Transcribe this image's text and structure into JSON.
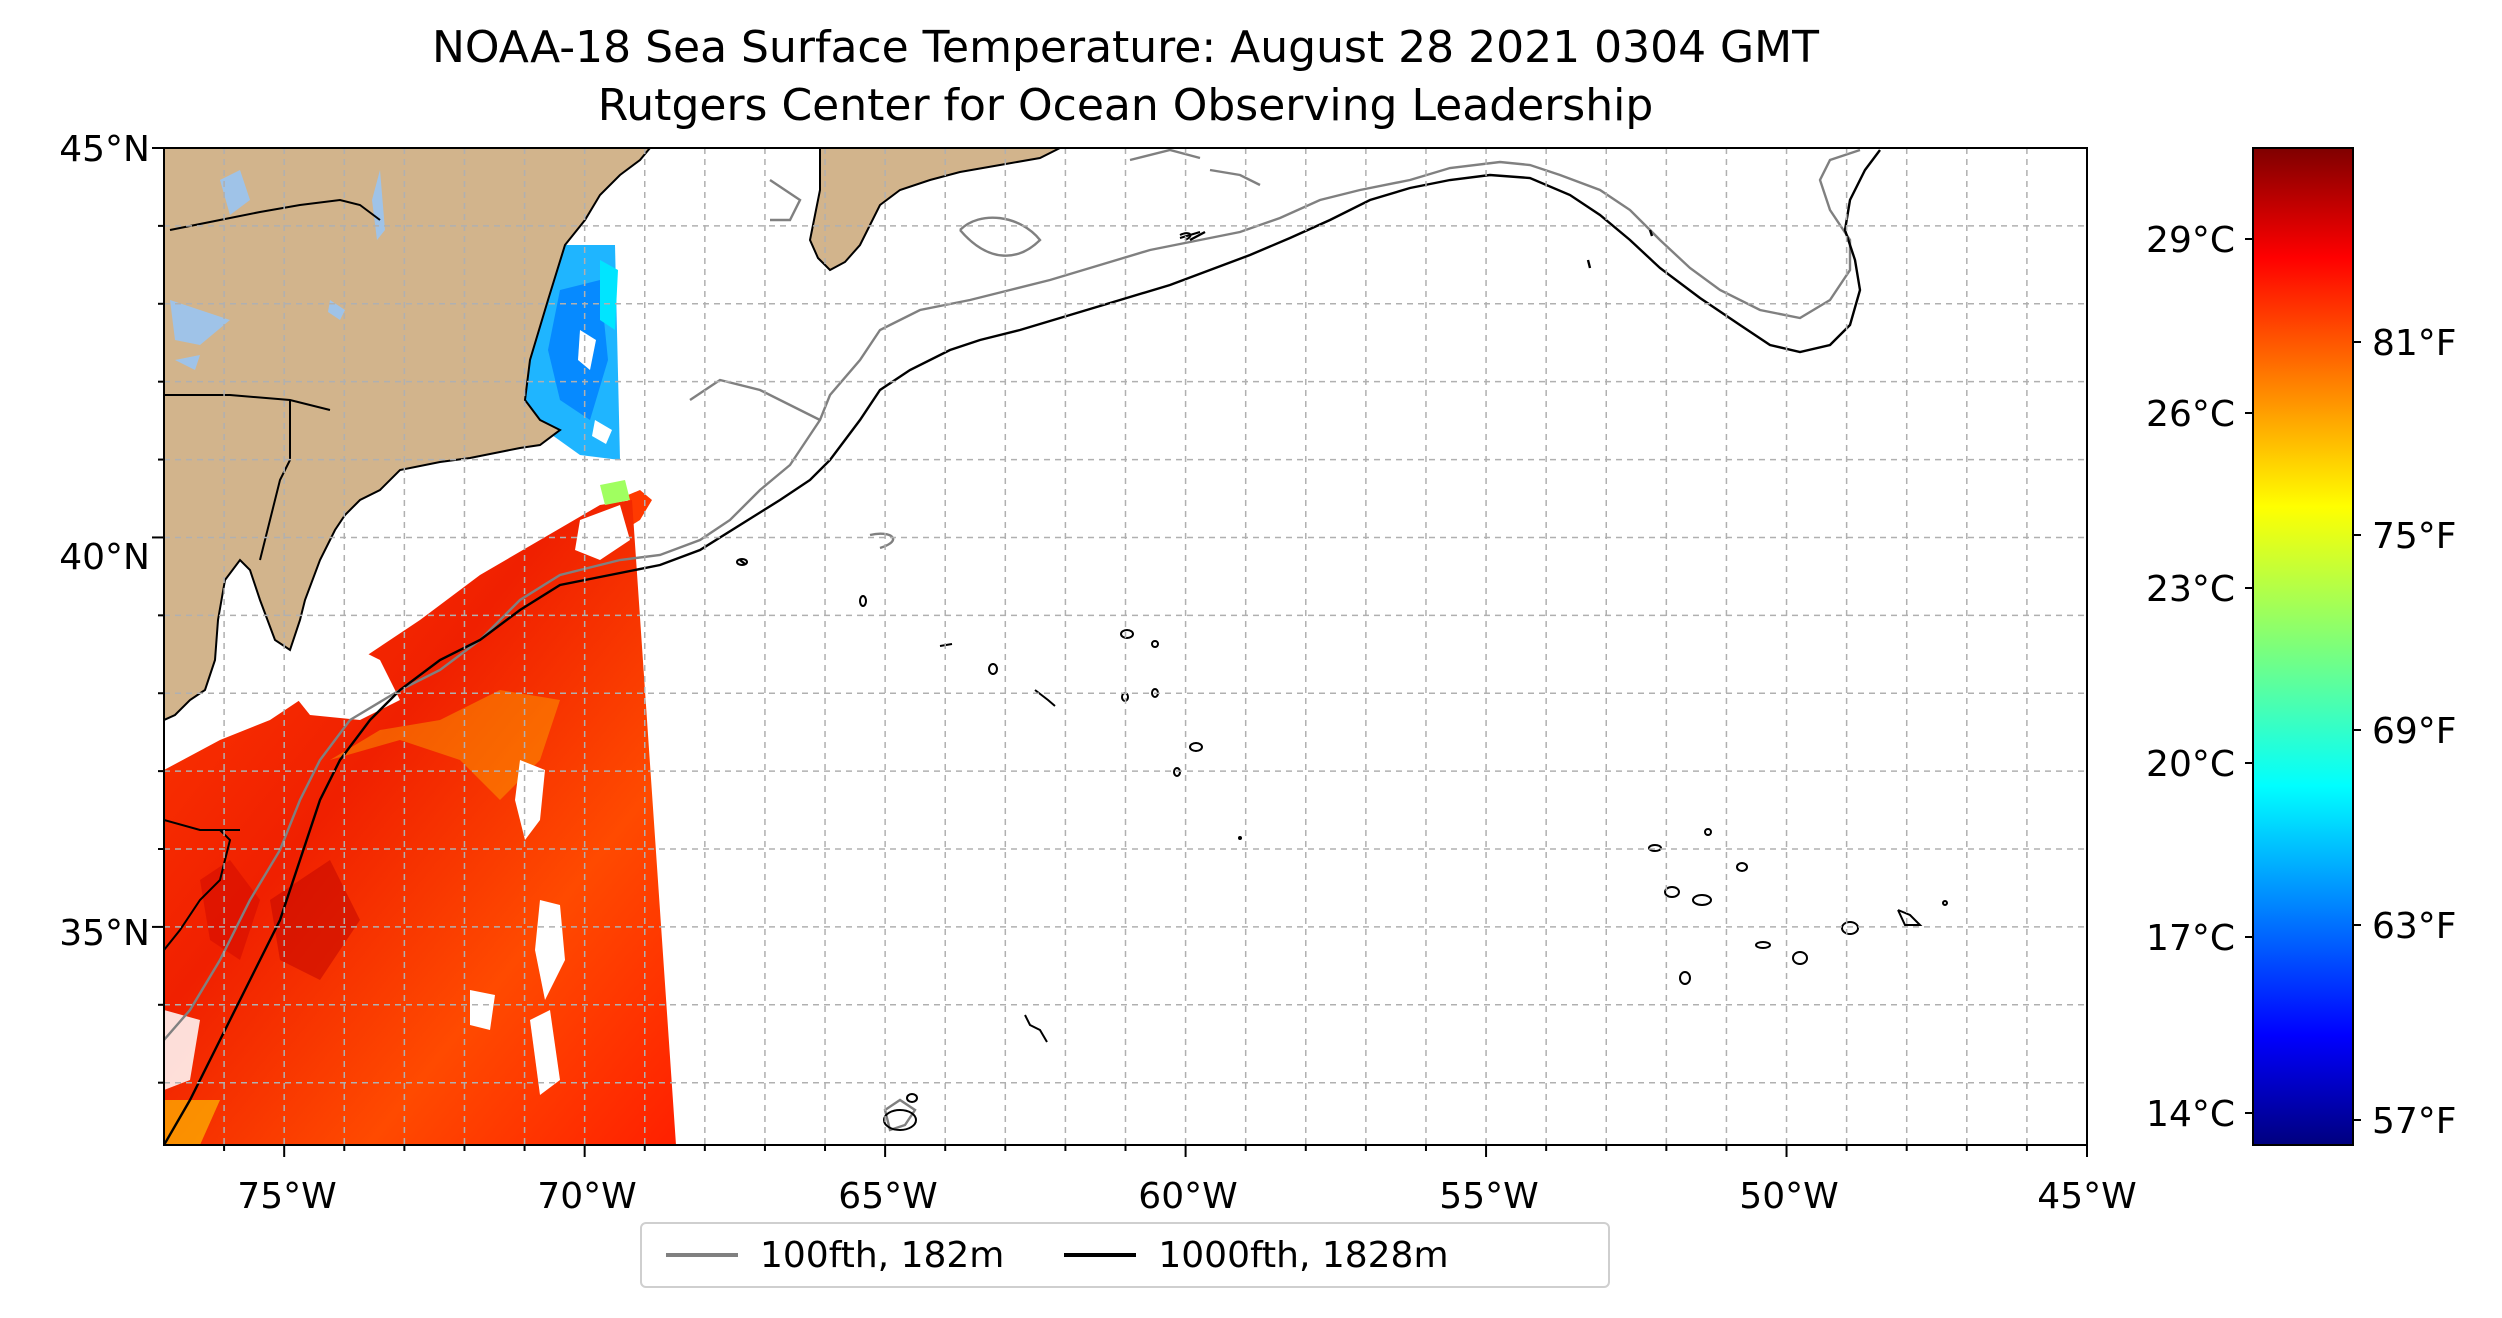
{
  "title": {
    "line1": "NOAA-18 Sea Surface Temperature: August 28 2021 0304 GMT",
    "line2": "Rutgers Center for Ocean Observing Leadership"
  },
  "map": {
    "lon_range": [
      -77,
      -45
    ],
    "lat_range": [
      32.2,
      45
    ],
    "lon_ticks": [
      "75°W",
      "70°W",
      "65°W",
      "60°W",
      "55°W",
      "50°W",
      "45°W"
    ],
    "lat_ticks": [
      "45°N",
      "40°N",
      "35°N"
    ],
    "land_color": "#d2b48c",
    "lake_color": "#9fc3e8",
    "grid": true
  },
  "colorbar": {
    "cmap": "jet",
    "range_c": [
      13.4,
      31.3
    ],
    "celsius_ticks": [
      "29°C",
      "26°C",
      "23°C",
      "20°C",
      "17°C",
      "14°C"
    ],
    "fahrenheit_ticks": [
      "81°F",
      "75°F",
      "69°F",
      "63°F",
      "57°F"
    ]
  },
  "legend": {
    "items": [
      {
        "label": "100fth, 182m",
        "color": "#808080"
      },
      {
        "label": "1000fth, 1828m",
        "color": "#000000"
      }
    ]
  }
}
